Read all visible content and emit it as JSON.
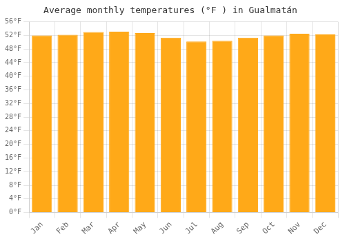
{
  "chart_data": {
    "type": "bar",
    "title": "Average monthly temperatures (°F ) in Gualmatán",
    "categories": [
      "Jan",
      "Feb",
      "Mar",
      "Apr",
      "May",
      "Jun",
      "Jul",
      "Aug",
      "Sep",
      "Oct",
      "Nov",
      "Dec"
    ],
    "values": [
      52.0,
      52.2,
      53.0,
      53.1,
      52.7,
      51.3,
      50.2,
      50.4,
      51.3,
      52.0,
      52.5,
      52.3
    ],
    "color": "#FFA918",
    "ylim": [
      0,
      56
    ],
    "yticks": [
      {
        "value": 0,
        "label": "0°F"
      },
      {
        "value": 4,
        "label": "4°F"
      },
      {
        "value": 8,
        "label": "8°F"
      },
      {
        "value": 12,
        "label": "12°F"
      },
      {
        "value": 16,
        "label": "16°F"
      },
      {
        "value": 20,
        "label": "20°F"
      },
      {
        "value": 24,
        "label": "24°F"
      },
      {
        "value": 28,
        "label": "28°F"
      },
      {
        "value": 32,
        "label": "32°F"
      },
      {
        "value": 36,
        "label": "36°F"
      },
      {
        "value": 40,
        "label": "40°F"
      },
      {
        "value": 44,
        "label": "44°F"
      },
      {
        "value": 48,
        "label": "48°F"
      },
      {
        "value": 52,
        "label": "52°F"
      },
      {
        "value": 56,
        "label": "56°F"
      }
    ],
    "grid": true
  }
}
